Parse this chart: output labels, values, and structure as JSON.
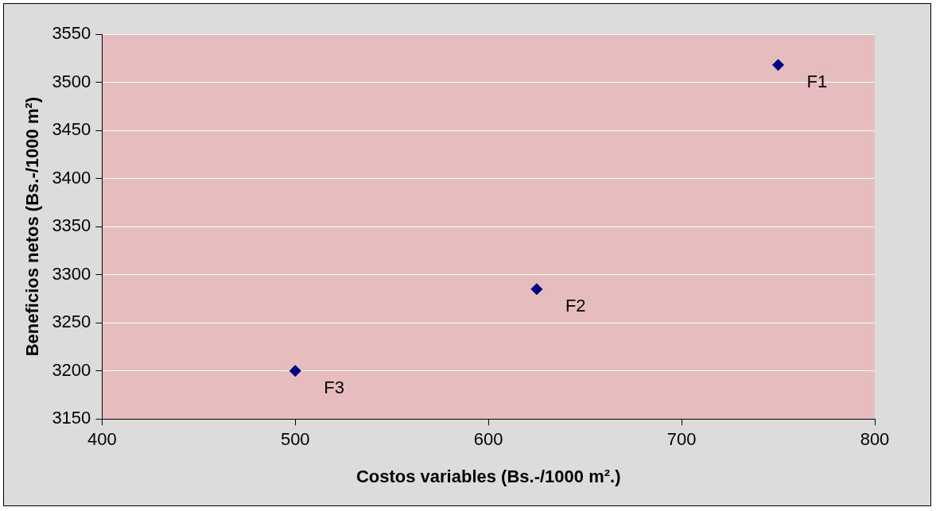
{
  "chart_data": {
    "type": "scatter",
    "xlabel": "Costos variables (Bs.-/1000 m².)",
    "ylabel": "Beneficios netos (Bs.-/1000 m²)",
    "series": [
      {
        "color": "#000080",
        "x": [
          750,
          625,
          500
        ],
        "values": [
          3518,
          3285,
          3200
        ]
      }
    ],
    "xlim": [
      400,
      800
    ],
    "xticks": [
      400,
      500,
      600,
      700,
      800
    ],
    "ylim": [
      3150,
      3550
    ],
    "yticks": [
      3150,
      3200,
      3250,
      3300,
      3350,
      3400,
      3450,
      3500,
      3550
    ],
    "grid": "y",
    "marker": "diamond",
    "legend": false,
    "annotations": [
      {
        "text": "F1",
        "x": 750,
        "y": 3518
      },
      {
        "text": "F2",
        "x": 625,
        "y": 3285
      },
      {
        "text": "F3",
        "x": 500,
        "y": 3200
      }
    ]
  }
}
